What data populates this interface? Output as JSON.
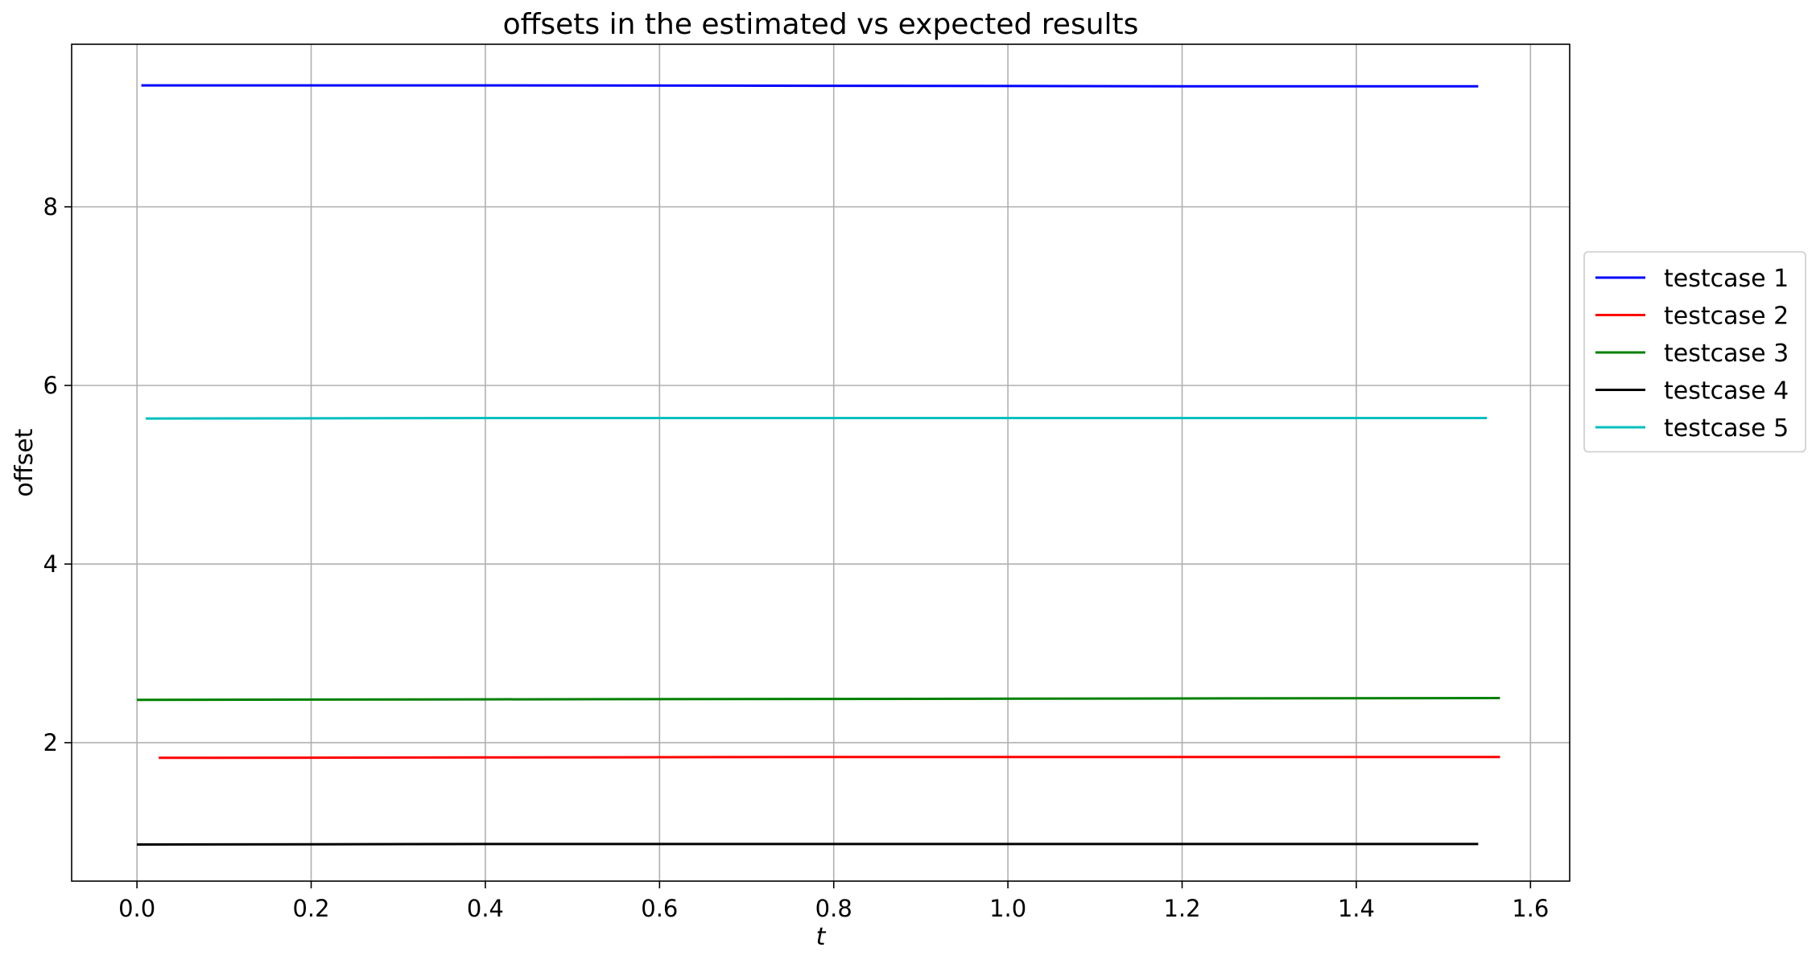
{
  "chart_data": {
    "type": "line",
    "title": "offsets in the estimated vs expected results",
    "xlabel": "t",
    "ylabel": "offset",
    "xlim": [
      -0.075,
      1.645
    ],
    "ylim": [
      0.45,
      9.82
    ],
    "xticks": [
      0.0,
      0.2,
      0.4,
      0.6,
      0.8,
      1.0,
      1.2,
      1.4,
      1.6
    ],
    "xtick_labels": [
      "0.0",
      "0.2",
      "0.4",
      "0.6",
      "0.8",
      "1.0",
      "1.2",
      "1.4",
      "1.6"
    ],
    "yticks": [
      2,
      4,
      6,
      8
    ],
    "ytick_labels": [
      "2",
      "4",
      "6",
      "8"
    ],
    "grid": true,
    "legend_position": "outside-right",
    "series": [
      {
        "name": "testcase 1",
        "color": "#0000ff",
        "x": [
          0.005,
          0.4,
          0.8,
          1.2,
          1.54
        ],
        "y": [
          9.36,
          9.36,
          9.355,
          9.35,
          9.35
        ]
      },
      {
        "name": "testcase 2",
        "color": "#ff0000",
        "x": [
          0.025,
          0.4,
          0.8,
          1.2,
          1.565
        ],
        "y": [
          1.83,
          1.835,
          1.84,
          1.84,
          1.84
        ]
      },
      {
        "name": "testcase 3",
        "color": "#008000",
        "x": [
          0.0,
          0.4,
          0.8,
          1.2,
          1.565
        ],
        "y": [
          2.48,
          2.485,
          2.49,
          2.495,
          2.5
        ]
      },
      {
        "name": "testcase 4",
        "color": "#000000",
        "x": [
          0.0,
          0.4,
          0.8,
          1.2,
          1.54
        ],
        "y": [
          0.86,
          0.865,
          0.865,
          0.865,
          0.865
        ]
      },
      {
        "name": "testcase 5",
        "color": "#00bfbf",
        "x": [
          0.01,
          0.4,
          0.8,
          1.2,
          1.55
        ],
        "y": [
          5.63,
          5.635,
          5.635,
          5.635,
          5.635
        ]
      }
    ]
  }
}
